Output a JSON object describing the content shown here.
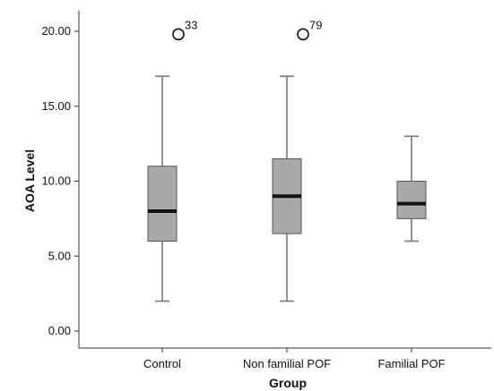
{
  "chart_data": {
    "type": "boxplot",
    "xlabel": "Group",
    "ylabel": "AOA Level",
    "ylim": [
      0,
      22
    ],
    "yticks": [
      0,
      5,
      10,
      15,
      20
    ],
    "ytick_labels": [
      "0.00",
      "5.00",
      "10.00",
      "15.00",
      "20.00"
    ],
    "grid": false,
    "categories": [
      "Control",
      "Non familial POF",
      "Familial POF"
    ],
    "boxes": [
      {
        "category": "Control",
        "min": 2.0,
        "q1": 6.0,
        "median": 8.0,
        "q3": 11.0,
        "max": 17.0,
        "outliers": [
          {
            "value": 19.8,
            "label": "33"
          }
        ]
      },
      {
        "category": "Non familial POF",
        "min": 2.0,
        "q1": 6.5,
        "median": 9.0,
        "q3": 11.5,
        "max": 17.0,
        "outliers": [
          {
            "value": 19.8,
            "label": "79"
          }
        ]
      },
      {
        "category": "Familial POF",
        "min": 6.0,
        "q1": 7.5,
        "median": 8.5,
        "q3": 10.0,
        "max": 13.0,
        "outliers": []
      }
    ],
    "colors": {
      "box_fill": "#a9a9ab",
      "box_stroke": "#555555",
      "median": "#111111",
      "whisker": "#777777",
      "axis": "#333333"
    }
  }
}
